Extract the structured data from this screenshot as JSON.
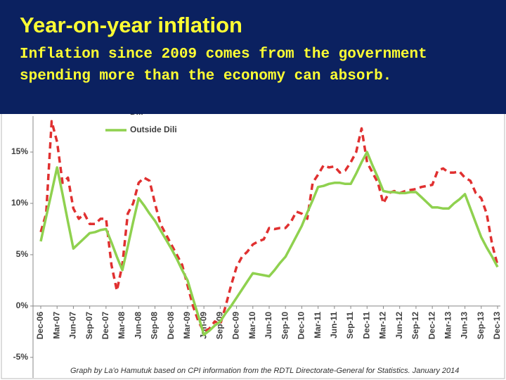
{
  "header": {
    "title": "Year-on-year inflation",
    "subtitle": "Inflation since 2009 comes from the government spending more than the economy can absorb."
  },
  "chart_data": {
    "type": "line",
    "categories": [
      "Dec-06",
      null,
      null,
      "Mar-07",
      null,
      null,
      "Jun-07",
      null,
      null,
      "Sep-07",
      null,
      null,
      "Dec-07",
      null,
      null,
      "Mar-08",
      null,
      null,
      "Jun-08",
      null,
      null,
      "Sep-08",
      null,
      null,
      "Dec-08",
      null,
      null,
      "Mar-09",
      null,
      null,
      "Jun-09",
      null,
      null,
      "Sep-09",
      null,
      null,
      "Dec-09",
      null,
      null,
      "Mar-10",
      null,
      null,
      "Jun-10",
      null,
      null,
      "Sep-10",
      null,
      null,
      "Dec-10",
      null,
      null,
      "Mar-11",
      null,
      null,
      "Jun-11",
      null,
      null,
      "Sep-11",
      null,
      null,
      "Dec-11",
      null,
      null,
      "Mar-12",
      null,
      null,
      "Jun-12",
      null,
      null,
      "Sep-12",
      null,
      null,
      "Dec-12",
      null,
      null,
      "Mar-13",
      null,
      null,
      "Jun-13",
      null,
      null,
      "Sep-13",
      null,
      null,
      "Dec-13"
    ],
    "series": [
      {
        "name": "Dili",
        "color": "#e03030",
        "dashed": true,
        "values": [
          7.2,
          9,
          18,
          16,
          12,
          12.5,
          9.5,
          8.5,
          9,
          8,
          8,
          8.5,
          8.5,
          4,
          1.5,
          4,
          9,
          10,
          12,
          12.5,
          12.2,
          10,
          8,
          7,
          6,
          5,
          4,
          2,
          0,
          -1.5,
          -2.5,
          -2.2,
          -1.5,
          -1.8,
          0,
          2,
          3.8,
          4.8,
          5.3,
          6,
          6.3,
          6.5,
          7.6,
          7.5,
          7.6,
          7.6,
          8.2,
          9.2,
          9,
          8.5,
          12,
          12.8,
          13.7,
          13.5,
          13.6,
          13,
          13.2,
          14,
          15,
          17.3,
          14,
          13,
          12,
          10,
          11,
          11.2,
          11,
          11.2,
          11.3,
          11.4,
          11.6,
          11.7,
          11.8,
          13.2,
          13.4,
          13,
          13,
          13.1,
          12.5,
          12.2,
          11,
          10.5,
          9,
          6,
          4
        ]
      },
      {
        "name": "Outside Dili",
        "color": "#8fd14f",
        "dashed": false,
        "values": [
          6.3,
          8.7,
          11.1,
          13.5,
          10.9,
          8.2,
          5.6,
          6.1,
          6.6,
          7.1,
          7.2,
          7.4,
          7.5,
          6.2,
          4.8,
          3.5,
          5.8,
          8.2,
          10.5,
          9.8,
          9.0,
          8.3,
          7.4,
          6.5,
          5.6,
          4.6,
          3.5,
          2.5,
          0.7,
          -1.0,
          -2.8,
          -2.4,
          -1.9,
          -1.5,
          -0.7,
          0.0,
          0.8,
          1.6,
          2.4,
          3.2,
          3.1,
          3.0,
          2.9,
          3.5,
          4.2,
          4.8,
          5.8,
          6.8,
          7.8,
          9.1,
          10.3,
          11.6,
          11.7,
          11.9,
          12.0,
          12.0,
          11.9,
          11.9,
          12.9,
          14.0,
          15.0,
          13.7,
          12.5,
          11.2,
          11.1,
          11.1,
          11.0,
          11.0,
          11.1,
          11.1,
          10.6,
          10.1,
          9.6,
          9.6,
          9.5,
          9.5,
          10.0,
          10.4,
          10.9,
          9.5,
          8.1,
          6.7,
          5.7,
          4.8,
          3.8
        ]
      }
    ],
    "ylim": [
      -7,
      18.5
    ],
    "yticks": [
      {
        "value": -5,
        "label": "-5%"
      },
      {
        "value": 0,
        "label": "0%"
      },
      {
        "value": 5,
        "label": "5%"
      },
      {
        "value": 10,
        "label": "10%"
      },
      {
        "value": 15,
        "label": "15%"
      }
    ],
    "grid": false,
    "note": "Graph by La'o Hamutuk based on CPI information from the RDTL Directorate-General for Statistics.  January 2014"
  }
}
